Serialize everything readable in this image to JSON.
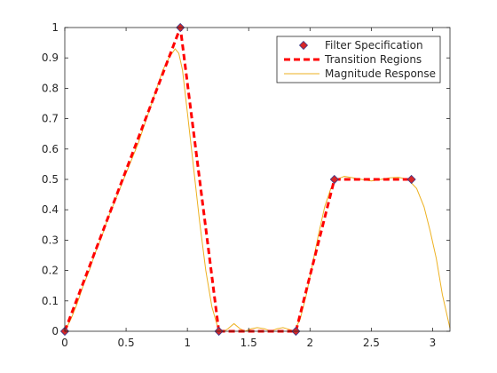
{
  "chart_data": {
    "type": "line",
    "title": "",
    "xlabel": "",
    "ylabel": "",
    "xlim": [
      0,
      3.1416
    ],
    "ylim": [
      0,
      1
    ],
    "xticks": [
      0,
      0.5,
      1,
      1.5,
      2,
      2.5,
      3
    ],
    "xtick_labels": [
      "0",
      "0.5",
      "1",
      "1.5",
      "2",
      "2.5",
      "3"
    ],
    "yticks": [
      0,
      0.1,
      0.2,
      0.3,
      0.4,
      0.5,
      0.6,
      0.7,
      0.8,
      0.9,
      1
    ],
    "ytick_labels": [
      "0",
      "0.1",
      "0.2",
      "0.3",
      "0.4",
      "0.5",
      "0.6",
      "0.7",
      "0.8",
      "0.9",
      "1"
    ],
    "grid": false,
    "legend_position": "top-right",
    "series": [
      {
        "name": "Filter Specification",
        "style": "markers",
        "color": "#d62728",
        "points": [
          [
            0,
            0
          ],
          [
            0.9425,
            1
          ],
          [
            1.2566,
            0
          ],
          [
            1.885,
            0
          ],
          [
            2.1991,
            0.5
          ],
          [
            2.8274,
            0.5
          ]
        ]
      },
      {
        "name": "Transition Regions",
        "style": "dashed",
        "color": "#ff0000",
        "segments": [
          [
            [
              0,
              0
            ],
            [
              0.9425,
              1
            ],
            [
              1.2566,
              0
            ]
          ],
          [
            [
              1.885,
              0
            ],
            [
              2.1991,
              0.5
            ]
          ]
        ]
      },
      {
        "name": "Magnitude Response",
        "style": "solid",
        "color": "#edb120",
        "points": [
          [
            0,
            0
          ],
          [
            0.05,
            0.04
          ],
          [
            0.1,
            0.09
          ],
          [
            0.15,
            0.15
          ],
          [
            0.2,
            0.2
          ],
          [
            0.25,
            0.26
          ],
          [
            0.3,
            0.31
          ],
          [
            0.35,
            0.37
          ],
          [
            0.4,
            0.42
          ],
          [
            0.45,
            0.47
          ],
          [
            0.5,
            0.52
          ],
          [
            0.55,
            0.57
          ],
          [
            0.6,
            0.62
          ],
          [
            0.65,
            0.68
          ],
          [
            0.7,
            0.74
          ],
          [
            0.75,
            0.8
          ],
          [
            0.8,
            0.86
          ],
          [
            0.85,
            0.9
          ],
          [
            0.9,
            0.93
          ],
          [
            0.93,
            0.915
          ],
          [
            0.96,
            0.86
          ],
          [
            1.0,
            0.72
          ],
          [
            1.05,
            0.54
          ],
          [
            1.1,
            0.36
          ],
          [
            1.15,
            0.2
          ],
          [
            1.2,
            0.08
          ],
          [
            1.25,
            0.01
          ],
          [
            1.3,
            0.0
          ],
          [
            1.33,
            0.008
          ],
          [
            1.38,
            0.025
          ],
          [
            1.43,
            0.008
          ],
          [
            1.47,
            0.0
          ],
          [
            1.52,
            0.008
          ],
          [
            1.57,
            0.012
          ],
          [
            1.63,
            0.008
          ],
          [
            1.68,
            0.0
          ],
          [
            1.73,
            0.008
          ],
          [
            1.78,
            0.012
          ],
          [
            1.83,
            0.006
          ],
          [
            1.87,
            0.0
          ],
          [
            1.92,
            0.04
          ],
          [
            1.97,
            0.12
          ],
          [
            2.02,
            0.22
          ],
          [
            2.07,
            0.32
          ],
          [
            2.12,
            0.41
          ],
          [
            2.17,
            0.47
          ],
          [
            2.22,
            0.5
          ],
          [
            2.28,
            0.51
          ],
          [
            2.35,
            0.505
          ],
          [
            2.42,
            0.5
          ],
          [
            2.5,
            0.495
          ],
          [
            2.58,
            0.5
          ],
          [
            2.65,
            0.505
          ],
          [
            2.72,
            0.507
          ],
          [
            2.8,
            0.5
          ],
          [
            2.87,
            0.47
          ],
          [
            2.93,
            0.41
          ],
          [
            2.98,
            0.33
          ],
          [
            3.03,
            0.24
          ],
          [
            3.08,
            0.12
          ],
          [
            3.1416,
            0.01
          ]
        ]
      }
    ]
  }
}
